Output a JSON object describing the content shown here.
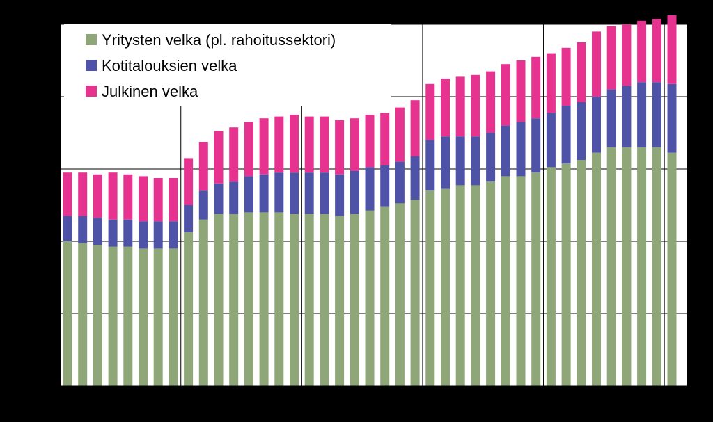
{
  "chart_data": {
    "type": "bar",
    "stacked": true,
    "title": "",
    "xlabel": "",
    "ylabel": "",
    "ylim": [
      0,
      100
    ],
    "grid": true,
    "legend_position": "top-left",
    "n_bars": 41,
    "series": [
      {
        "name": "Yritysten velka (pl. rahoitussektori)",
        "color": "#8ea678",
        "values": [
          40.0,
          39.5,
          39.0,
          38.5,
          38.5,
          38.0,
          38.0,
          38.0,
          42.5,
          46.0,
          47.5,
          47.5,
          48.0,
          48.0,
          48.0,
          47.5,
          47.5,
          47.5,
          47.0,
          47.5,
          48.5,
          49.5,
          50.5,
          51.5,
          54.0,
          54.5,
          55.5,
          55.5,
          56.5,
          58.0,
          58.0,
          59.0,
          60.5,
          61.5,
          62.5,
          64.5,
          66.0,
          66.0,
          66.0,
          66.0,
          64.5
        ]
      },
      {
        "name": "Kotitalouksien velka",
        "color": "#4f53a8",
        "values": [
          7.0,
          7.5,
          7.5,
          7.5,
          7.5,
          7.5,
          7.5,
          7.5,
          7.5,
          8.0,
          8.5,
          9.0,
          10.0,
          10.5,
          11.0,
          11.5,
          11.5,
          11.5,
          11.5,
          12.0,
          12.0,
          11.5,
          11.5,
          12.0,
          14.0,
          14.5,
          13.5,
          13.5,
          13.5,
          14.0,
          15.0,
          15.0,
          15.0,
          16.0,
          16.0,
          15.5,
          16.0,
          17.0,
          18.0,
          18.0,
          19.0
        ]
      },
      {
        "name": "Julkinen velka",
        "color": "#e5338f",
        "values": [
          12.0,
          12.0,
          12.0,
          13.0,
          12.5,
          12.5,
          12.0,
          12.0,
          13.0,
          13.5,
          14.5,
          15.0,
          15.0,
          15.5,
          15.5,
          16.0,
          15.5,
          15.5,
          15.0,
          14.5,
          14.5,
          14.5,
          15.0,
          15.5,
          15.5,
          16.0,
          16.5,
          17.0,
          17.0,
          17.0,
          17.0,
          17.0,
          16.5,
          16.0,
          16.5,
          18.0,
          17.5,
          17.0,
          17.0,
          17.5,
          19.0
        ]
      }
    ]
  }
}
